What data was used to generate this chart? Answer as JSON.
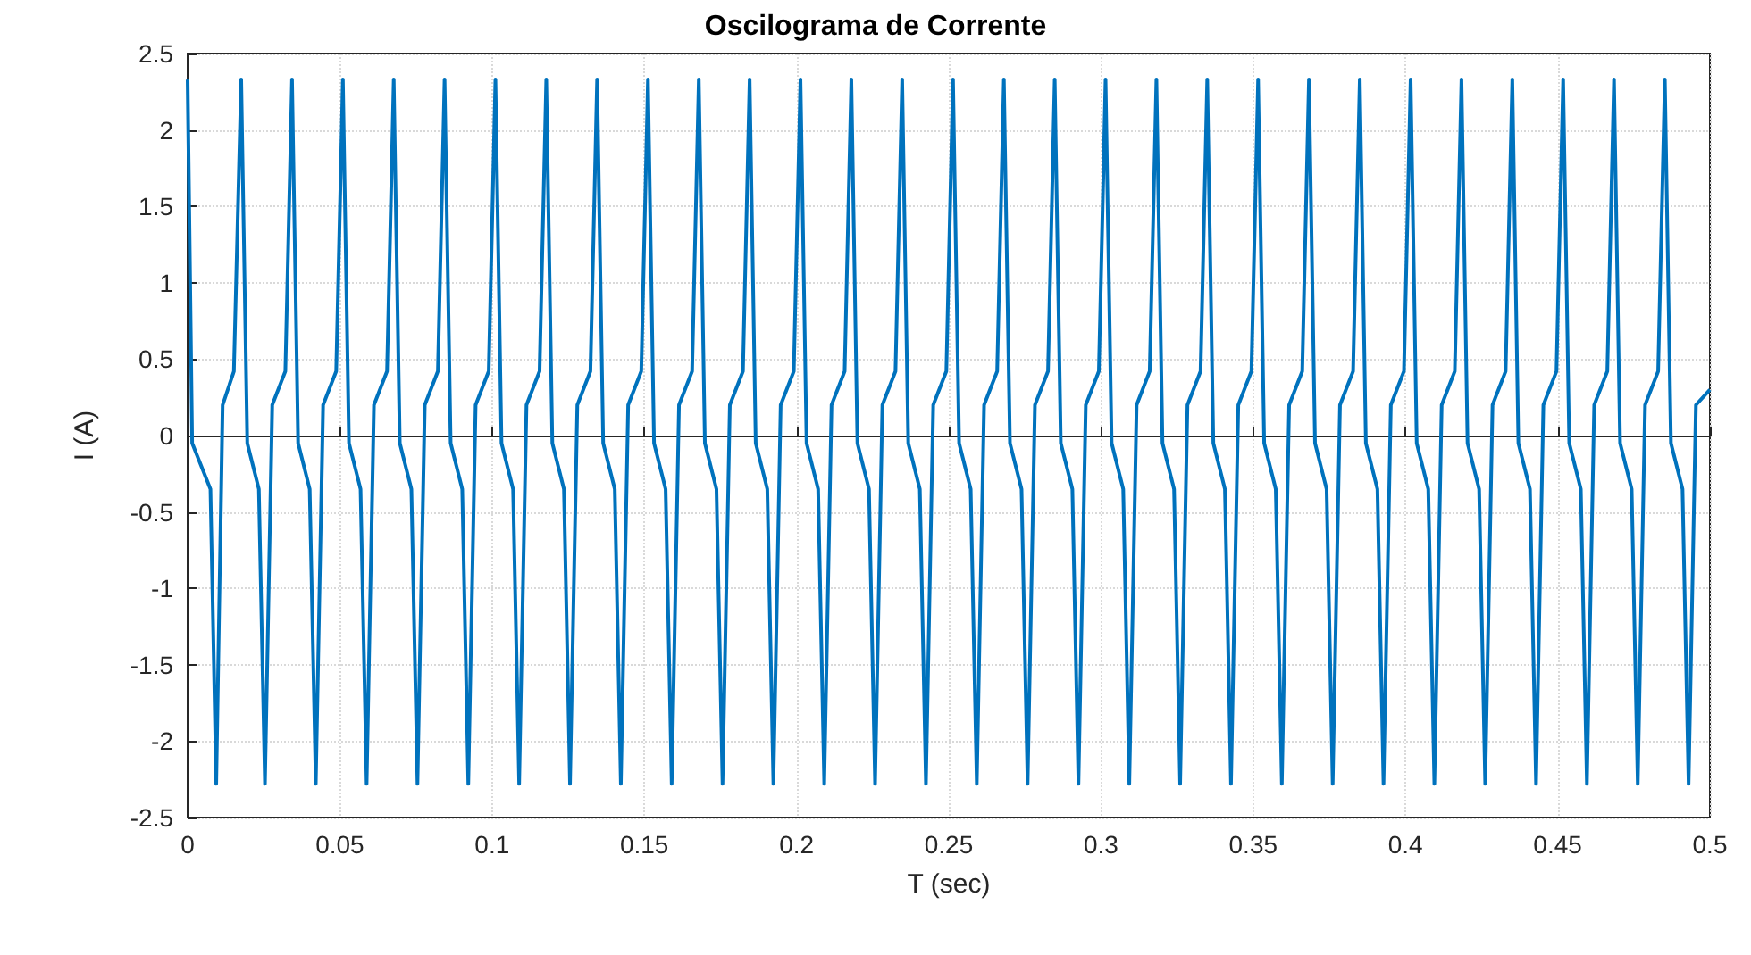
{
  "chart_data": {
    "type": "line",
    "title": "Oscilograma de Corrente",
    "xlabel": "T (sec)",
    "ylabel": "I (A)",
    "color": "#0072bd",
    "grid": true,
    "xlim": [
      0,
      0.5
    ],
    "xticks": [
      0,
      0.05,
      0.1,
      0.15,
      0.2,
      0.25,
      0.3,
      0.35,
      0.4,
      0.45,
      0.5
    ],
    "ylim": [
      -2.5,
      2.5
    ],
    "yticks": [
      -2.5,
      -2,
      -1.5,
      -1,
      -0.5,
      0,
      0.5,
      1,
      1.5,
      2,
      2.5
    ],
    "x": [
      0,
      0.0015,
      0.0075,
      0.0094,
      0.0115,
      0.0152,
      0.0176,
      0.0196,
      0.0234,
      0.0254,
      0.0278,
      0.0321,
      0.0343,
      0.0363,
      0.0401,
      0.0421,
      0.0445,
      0.0488,
      0.051,
      0.053,
      0.0568,
      0.0588,
      0.0612,
      0.0655,
      0.0677,
      0.0697,
      0.0735,
      0.0755,
      0.0779,
      0.0822,
      0.0844,
      0.0864,
      0.0902,
      0.0922,
      0.0946,
      0.0989,
      0.1011,
      0.1031,
      0.1069,
      0.1089,
      0.1113,
      0.1156,
      0.1178,
      0.1198,
      0.1236,
      0.1256,
      0.128,
      0.1323,
      0.1345,
      0.1365,
      0.1403,
      0.1423,
      0.1447,
      0.149,
      0.1512,
      0.1532,
      0.157,
      0.159,
      0.1614,
      0.1657,
      0.1679,
      0.1699,
      0.1737,
      0.1757,
      0.1781,
      0.1824,
      0.1846,
      0.1866,
      0.1904,
      0.1924,
      0.1948,
      0.1991,
      0.2013,
      0.2033,
      0.2071,
      0.2091,
      0.2115,
      0.2158,
      0.218,
      0.22,
      0.2238,
      0.2258,
      0.2282,
      0.2325,
      0.2347,
      0.2367,
      0.2405,
      0.2425,
      0.2449,
      0.2492,
      0.2514,
      0.2534,
      0.2572,
      0.2592,
      0.2616,
      0.2659,
      0.2681,
      0.2701,
      0.2739,
      0.2759,
      0.2783,
      0.2826,
      0.2848,
      0.2868,
      0.2906,
      0.2926,
      0.295,
      0.2993,
      0.3015,
      0.3035,
      0.3073,
      0.3093,
      0.3117,
      0.316,
      0.3182,
      0.3202,
      0.324,
      0.326,
      0.3284,
      0.3327,
      0.3349,
      0.3369,
      0.3407,
      0.3427,
      0.3451,
      0.3494,
      0.3516,
      0.3536,
      0.3574,
      0.3594,
      0.3618,
      0.3661,
      0.3683,
      0.3703,
      0.3741,
      0.3761,
      0.3785,
      0.3828,
      0.385,
      0.387,
      0.3908,
      0.3928,
      0.3952,
      0.3995,
      0.4017,
      0.4037,
      0.4075,
      0.4095,
      0.4119,
      0.4162,
      0.4184,
      0.4204,
      0.4242,
      0.4262,
      0.4286,
      0.4329,
      0.4351,
      0.4371,
      0.4409,
      0.4429,
      0.4453,
      0.4496,
      0.4518,
      0.4538,
      0.4576,
      0.4596,
      0.462,
      0.4663,
      0.4685,
      0.4705,
      0.4743,
      0.4763,
      0.4787,
      0.483,
      0.4852,
      0.4872,
      0.491,
      0.493,
      0.4954,
      0.5
    ],
    "values": [
      2.33,
      -0.05,
      -0.35,
      -2.28,
      0.2,
      0.42,
      2.33,
      -0.05,
      -0.35,
      -2.28,
      0.2,
      0.42,
      2.33,
      -0.05,
      -0.35,
      -2.28,
      0.2,
      0.42,
      2.33,
      -0.05,
      -0.35,
      -2.28,
      0.2,
      0.42,
      2.33,
      -0.05,
      -0.35,
      -2.28,
      0.2,
      0.42,
      2.33,
      -0.05,
      -0.35,
      -2.28,
      0.2,
      0.42,
      2.33,
      -0.05,
      -0.35,
      -2.28,
      0.2,
      0.42,
      2.33,
      -0.05,
      -0.35,
      -2.28,
      0.2,
      0.42,
      2.33,
      -0.05,
      -0.35,
      -2.28,
      0.2,
      0.42,
      2.33,
      -0.05,
      -0.35,
      -2.28,
      0.2,
      0.42,
      2.33,
      -0.05,
      -0.35,
      -2.28,
      0.2,
      0.42,
      2.33,
      -0.05,
      -0.35,
      -2.28,
      0.2,
      0.42,
      2.33,
      -0.05,
      -0.35,
      -2.28,
      0.2,
      0.42,
      2.33,
      -0.05,
      -0.35,
      -2.28,
      0.2,
      0.42,
      2.33,
      -0.05,
      -0.35,
      -2.28,
      0.2,
      0.42,
      2.33,
      -0.05,
      -0.35,
      -2.28,
      0.2,
      0.42,
      2.33,
      -0.05,
      -0.35,
      -2.28,
      0.2,
      0.42,
      2.33,
      -0.05,
      -0.35,
      -2.28,
      0.2,
      0.42,
      2.33,
      -0.05,
      -0.35,
      -2.28,
      0.2,
      0.42,
      2.33,
      -0.05,
      -0.35,
      -2.28,
      0.2,
      0.42,
      2.33,
      -0.05,
      -0.35,
      -2.28,
      0.2,
      0.42,
      2.33,
      -0.05,
      -0.35,
      -2.28,
      0.2,
      0.42,
      2.33,
      -0.05,
      -0.35,
      -2.28,
      0.2,
      0.42,
      2.33,
      -0.05,
      -0.35,
      -2.28,
      0.2,
      0.42,
      2.33,
      -0.05,
      -0.35,
      -2.28,
      0.2,
      0.42,
      2.33,
      -0.05,
      -0.35,
      -2.28,
      0.2,
      0.42,
      2.33,
      -0.05,
      -0.35,
      -2.28,
      0.2,
      0.42,
      2.33,
      -0.05,
      -0.35,
      -2.28,
      0.2,
      0.42,
      2.33,
      -0.05,
      -0.35,
      -2.28,
      0.2,
      0.42,
      2.33,
      -0.05,
      -0.35,
      -2.28,
      0.2,
      0.3
    ]
  }
}
